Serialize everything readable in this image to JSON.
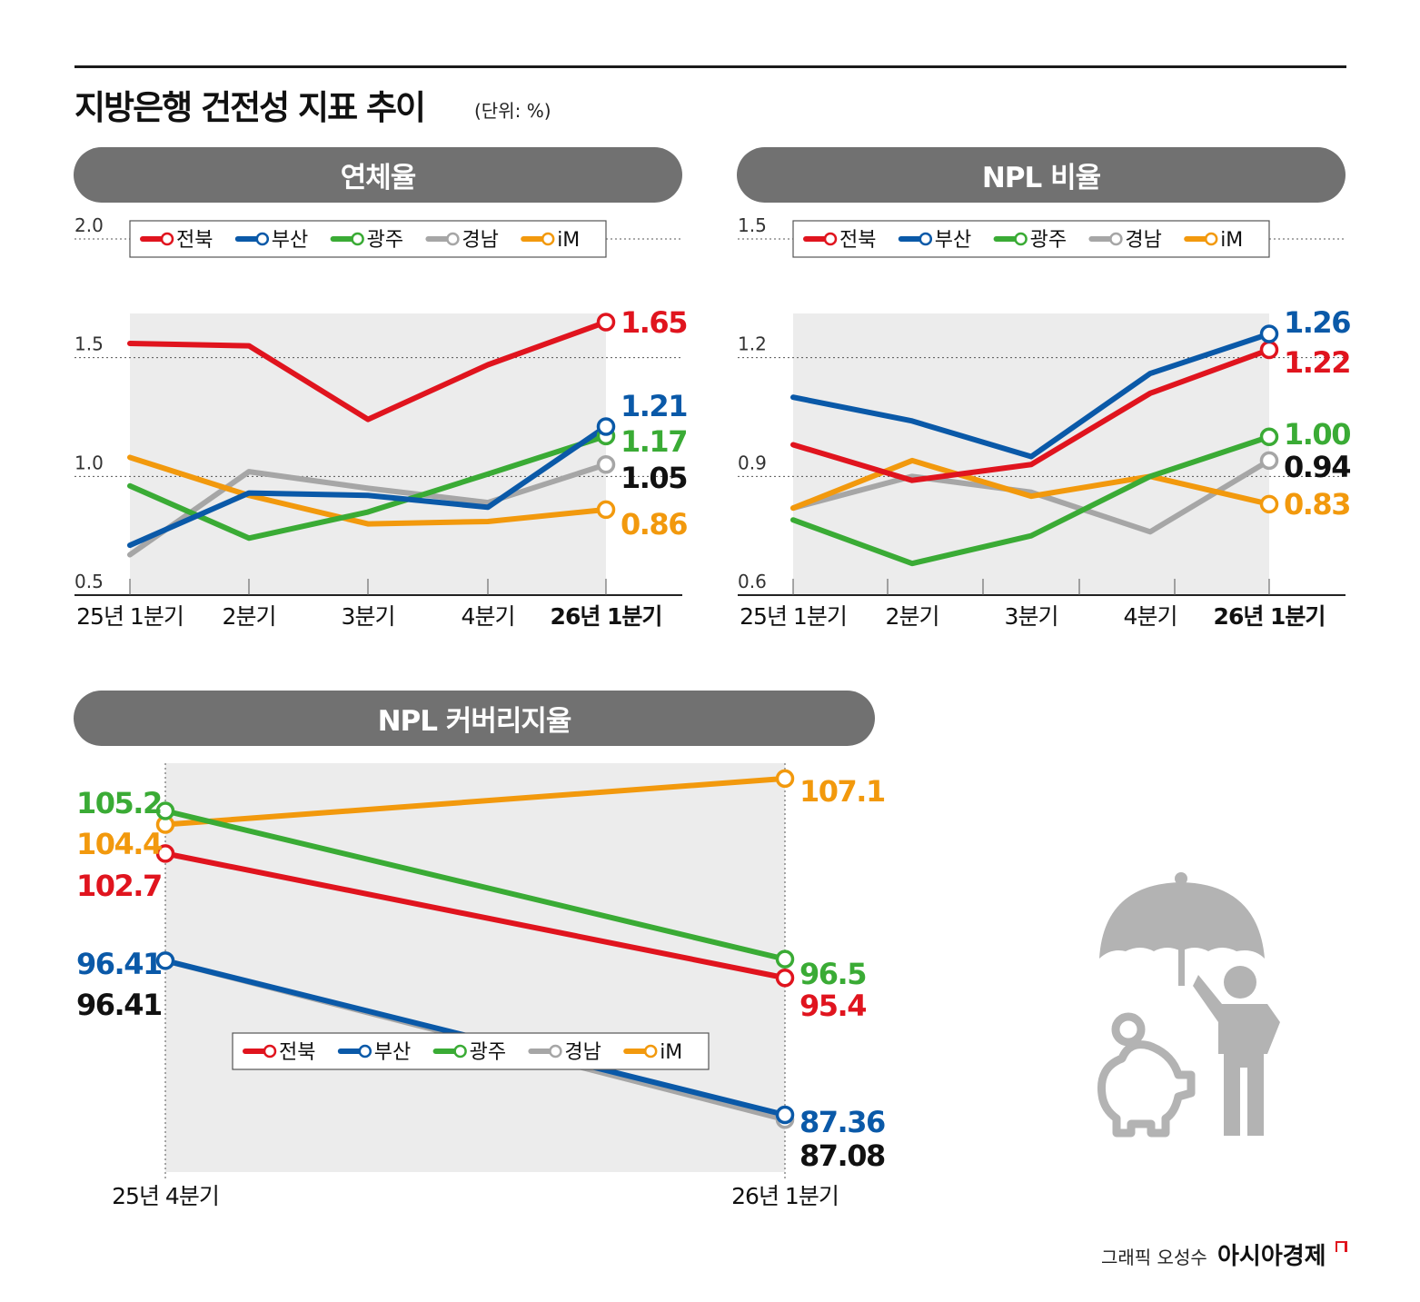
{
  "page": {
    "title": "지방은행 건전성 지표 추이",
    "unit": "(단위: %)",
    "credit": "그래픽 오성수",
    "brand": "아시아경제"
  },
  "colors": {
    "전북": "#e0141e",
    "부산": "#0a59a8",
    "광주": "#3aab35",
    "경남": "#a6a6a6",
    "iM": "#f2990d",
    "pill": "#717171",
    "plot_bg": "#ececec"
  },
  "legend": [
    "전북",
    "부산",
    "광주",
    "경남",
    "iM"
  ],
  "chart_data": [
    {
      "type": "line",
      "title": "연체율",
      "categories": [
        "25년 1분기",
        "2분기",
        "3분기",
        "4분기",
        "26년 1분기"
      ],
      "ylim": [
        0.5,
        2.0
      ],
      "yticks": [
        "0.5",
        "1.0",
        "1.5",
        "2.0"
      ],
      "grid": true,
      "legend_position": "top",
      "series": [
        {
          "name": "전북",
          "values": [
            1.56,
            1.55,
            1.24,
            1.47,
            1.65
          ],
          "last_label": "1.65"
        },
        {
          "name": "부산",
          "values": [
            0.71,
            0.93,
            0.92,
            0.87,
            1.21
          ],
          "last_label": "1.21"
        },
        {
          "name": "광주",
          "values": [
            0.96,
            0.74,
            0.85,
            1.01,
            1.17
          ],
          "last_label": "1.17"
        },
        {
          "name": "경남",
          "values": [
            0.67,
            1.02,
            0.95,
            0.89,
            1.05
          ],
          "last_label": "1.05"
        },
        {
          "name": "iM",
          "values": [
            1.08,
            0.92,
            0.8,
            0.81,
            0.86
          ],
          "last_label": "0.86"
        }
      ]
    },
    {
      "type": "line",
      "title": "NPL 비율",
      "categories": [
        "25년 1분기",
        "2분기",
        "3분기",
        "4분기",
        "26년 1분기"
      ],
      "ylim": [
        0.6,
        1.5
      ],
      "yticks": [
        "0.6",
        "0.9",
        "1.2",
        "1.5"
      ],
      "grid": true,
      "legend_position": "top",
      "series": [
        {
          "name": "전북",
          "values": [
            0.98,
            0.89,
            0.93,
            1.11,
            1.22
          ],
          "last_label": "1.22"
        },
        {
          "name": "부산",
          "values": [
            1.1,
            1.04,
            0.95,
            1.16,
            1.26
          ],
          "last_label": "1.26"
        },
        {
          "name": "광주",
          "values": [
            0.79,
            0.68,
            0.75,
            0.9,
            1.0
          ],
          "last_label": "1.00"
        },
        {
          "name": "경남",
          "values": [
            0.82,
            0.9,
            0.86,
            0.76,
            0.94
          ],
          "last_label": "0.94"
        },
        {
          "name": "iM",
          "values": [
            0.82,
            0.94,
            0.85,
            0.9,
            0.83
          ],
          "last_label": "0.83"
        }
      ]
    },
    {
      "type": "line",
      "title": "NPL 커버리지율",
      "categories": [
        "25년 4분기",
        "26년 1분기"
      ],
      "ylim": [
        84,
        108
      ],
      "grid": false,
      "legend_position": "bottom-center",
      "series": [
        {
          "name": "전북",
          "values": [
            102.7,
            95.4
          ],
          "labels": [
            "102.7",
            "95.4"
          ]
        },
        {
          "name": "부산",
          "values": [
            96.41,
            87.36
          ],
          "labels": [
            "96.41",
            "87.36"
          ]
        },
        {
          "name": "광주",
          "values": [
            105.2,
            96.5
          ],
          "labels": [
            "105.2",
            "96.5"
          ]
        },
        {
          "name": "경남",
          "values": [
            96.41,
            87.08
          ],
          "labels": [
            "96.41",
            "87.08"
          ]
        },
        {
          "name": "iM",
          "values": [
            104.4,
            107.1
          ],
          "labels": [
            "104.4",
            "107.1"
          ]
        }
      ]
    }
  ]
}
